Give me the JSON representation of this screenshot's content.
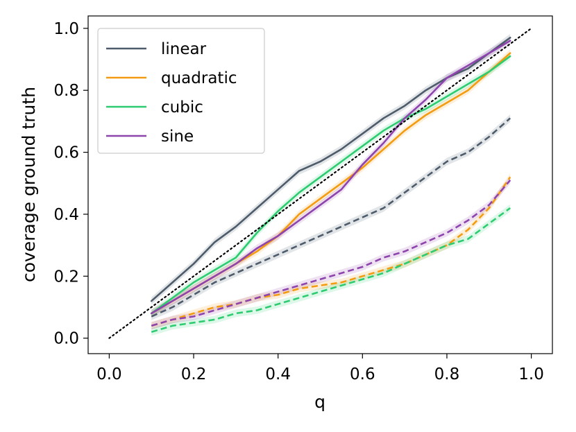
{
  "chart_data": {
    "type": "line",
    "title": "",
    "xlabel": "q",
    "ylabel": "coverage ground truth",
    "xlim": [
      -0.05,
      1.05
    ],
    "ylim": [
      -0.05,
      1.04
    ],
    "x_ticks": [
      0.0,
      0.2,
      0.4,
      0.6,
      0.8,
      1.0
    ],
    "x_tick_labels": [
      "0.0",
      "0.2",
      "0.4",
      "0.6",
      "0.8",
      "1.0"
    ],
    "y_ticks": [
      0.0,
      0.2,
      0.4,
      0.6,
      0.8,
      1.0
    ],
    "y_tick_labels": [
      "0.0",
      "0.2",
      "0.4",
      "0.6",
      "0.8",
      "1.0"
    ],
    "grid": false,
    "legend_position": "top-left",
    "x": [
      0.1,
      0.15,
      0.2,
      0.25,
      0.3,
      0.35,
      0.4,
      0.45,
      0.5,
      0.55,
      0.6,
      0.65,
      0.7,
      0.75,
      0.8,
      0.85,
      0.9,
      0.95
    ],
    "series": [
      {
        "name": "linear",
        "color": "#4d5b6a",
        "style": "solid",
        "values": [
          0.12,
          0.18,
          0.24,
          0.31,
          0.36,
          0.42,
          0.48,
          0.54,
          0.57,
          0.61,
          0.66,
          0.71,
          0.75,
          0.8,
          0.84,
          0.87,
          0.92,
          0.97
        ]
      },
      {
        "name": "quadratic",
        "color": "#f39c12",
        "style": "solid",
        "values": [
          0.08,
          0.12,
          0.16,
          0.2,
          0.24,
          0.28,
          0.33,
          0.4,
          0.45,
          0.5,
          0.55,
          0.61,
          0.67,
          0.72,
          0.76,
          0.8,
          0.86,
          0.92
        ]
      },
      {
        "name": "cubic",
        "color": "#2ecc71",
        "style": "solid",
        "values": [
          0.08,
          0.13,
          0.18,
          0.22,
          0.26,
          0.34,
          0.41,
          0.47,
          0.52,
          0.57,
          0.62,
          0.67,
          0.71,
          0.74,
          0.78,
          0.82,
          0.86,
          0.91
        ]
      },
      {
        "name": "sine",
        "color": "#8e44ad",
        "style": "solid",
        "values": [
          0.08,
          0.12,
          0.16,
          0.2,
          0.24,
          0.29,
          0.33,
          0.38,
          0.43,
          0.48,
          0.56,
          0.63,
          0.71,
          0.77,
          0.84,
          0.88,
          0.92,
          0.96
        ]
      },
      {
        "name": "linear-dashed",
        "color": "#4d5b6a",
        "style": "dashed",
        "values": [
          0.07,
          0.1,
          0.14,
          0.18,
          0.21,
          0.24,
          0.27,
          0.3,
          0.33,
          0.36,
          0.39,
          0.42,
          0.47,
          0.52,
          0.57,
          0.6,
          0.65,
          0.71
        ]
      },
      {
        "name": "quadratic-dashed",
        "color": "#f39c12",
        "style": "dashed",
        "values": [
          0.04,
          0.06,
          0.08,
          0.1,
          0.11,
          0.13,
          0.14,
          0.16,
          0.17,
          0.18,
          0.2,
          0.22,
          0.24,
          0.27,
          0.3,
          0.35,
          0.42,
          0.52
        ]
      },
      {
        "name": "cubic-dashed",
        "color": "#2ecc71",
        "style": "dashed",
        "values": [
          0.02,
          0.04,
          0.05,
          0.06,
          0.08,
          0.09,
          0.11,
          0.13,
          0.15,
          0.17,
          0.19,
          0.21,
          0.24,
          0.27,
          0.3,
          0.32,
          0.37,
          0.42
        ]
      },
      {
        "name": "sine-dashed",
        "color": "#8e44ad",
        "style": "dashed",
        "values": [
          0.04,
          0.06,
          0.07,
          0.09,
          0.11,
          0.13,
          0.15,
          0.17,
          0.19,
          0.21,
          0.23,
          0.26,
          0.28,
          0.31,
          0.34,
          0.38,
          0.43,
          0.51
        ]
      }
    ],
    "reference_line": {
      "name": "identity",
      "style": "dotted",
      "color": "#000000",
      "x": [
        0.0,
        1.0
      ],
      "y": [
        0.0,
        1.0
      ]
    },
    "legend": [
      {
        "label": "linear",
        "color": "#4d5b6a"
      },
      {
        "label": "quadratic",
        "color": "#f39c12"
      },
      {
        "label": "cubic",
        "color": "#2ecc71"
      },
      {
        "label": "sine",
        "color": "#8e44ad"
      }
    ]
  }
}
